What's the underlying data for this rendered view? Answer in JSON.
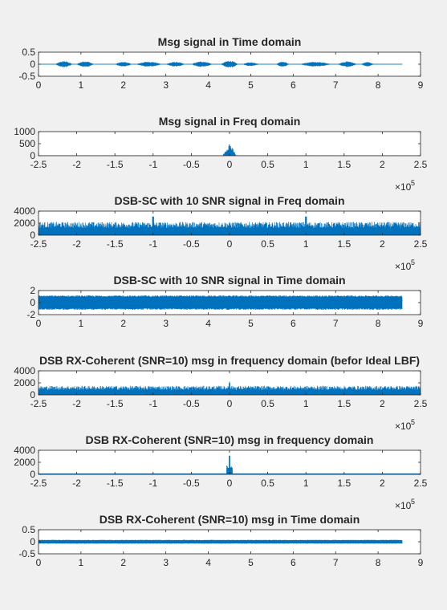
{
  "figure": {
    "background": "#f0f0f0",
    "axes_background": "#ffffff",
    "line_color": "#0072bd",
    "axis_color": "#262626"
  },
  "chart_data": [
    {
      "type": "line",
      "title": "Msg signal in Time domain",
      "xlim": [
        0,
        9
      ],
      "ylim": [
        -0.5,
        0.5
      ],
      "xticks": [
        "0",
        "1",
        "2",
        "3",
        "4",
        "5",
        "6",
        "7",
        "8",
        "9"
      ],
      "yticks": [
        "0.5",
        "0",
        "-0.5"
      ],
      "x_exponent": null,
      "series": [
        {
          "kind": "speech",
          "x_range": [
            0,
            8.57
          ],
          "noise_amplitude": 0.01,
          "bursts": [
            [
              0.4,
              0.8,
              0.13
            ],
            [
              0.9,
              1.3,
              0.13
            ],
            [
              1.8,
              2.2,
              0.1
            ],
            [
              2.3,
              2.9,
              0.11
            ],
            [
              3.0,
              3.45,
              0.1
            ],
            [
              3.6,
              4.1,
              0.12
            ],
            [
              4.3,
              4.7,
              0.15
            ],
            [
              4.8,
              5.2,
              0.08
            ],
            [
              5.6,
              5.9,
              0.12
            ],
            [
              6.15,
              6.9,
              0.1
            ],
            [
              7.05,
              7.5,
              0.12
            ],
            [
              7.6,
              7.9,
              0.09
            ]
          ]
        }
      ]
    },
    {
      "type": "line",
      "title": "Msg signal in Freq domain",
      "xlim": [
        -2.5,
        2.5
      ],
      "ylim": [
        0,
        1000
      ],
      "xticks": [
        "-2.5",
        "-2",
        "-1.5",
        "-1",
        "-0.5",
        "0",
        "0.5",
        "1",
        "1.5",
        "2",
        "2.5"
      ],
      "yticks": [
        "1000",
        "500",
        "0"
      ],
      "x_exponent": "5",
      "series": [
        {
          "kind": "spectrum",
          "floor": 5,
          "noise": 10,
          "center_peak": 560,
          "center_width": 0.09,
          "side_peaks": []
        }
      ]
    },
    {
      "type": "line",
      "title": "DSB-SC with 10 SNR signal in Freq domain",
      "xlim": [
        -2.5,
        2.5
      ],
      "ylim": [
        0,
        4000
      ],
      "xticks": [
        "-2.5",
        "-2",
        "-1.5",
        "-1",
        "-0.5",
        "0",
        "0.5",
        "1",
        "1.5",
        "2",
        "2.5"
      ],
      "yticks": [
        "4000",
        "2000",
        "0"
      ],
      "x_exponent": "5",
      "series": [
        {
          "kind": "spectrum",
          "floor": 0,
          "noise": 2200,
          "center_peak": 0,
          "center_width": 0,
          "side_peaks": [
            [
              -1,
              3100
            ],
            [
              1,
              3100
            ]
          ]
        }
      ]
    },
    {
      "type": "line",
      "title": "DSB-SC with 10 SNR signal in Time domain",
      "xlim": [
        0,
        9
      ],
      "ylim": [
        -2,
        2
      ],
      "xticks": [
        "0",
        "1",
        "2",
        "3",
        "4",
        "5",
        "6",
        "7",
        "8",
        "9"
      ],
      "yticks": [
        "2",
        "0",
        "-2"
      ],
      "x_exponent": null,
      "series": [
        {
          "kind": "noise_band",
          "x_range": [
            0,
            8.57
          ],
          "amplitude": 1.2
        }
      ]
    },
    {
      "type": "line",
      "title": "DSB RX-Coherent (SNR=10) msg in frequency domain (befor Ideal LBF)",
      "xlim": [
        -2.5,
        2.5
      ],
      "ylim": [
        0,
        4000
      ],
      "xticks": [
        "-2.5",
        "-2",
        "-1.5",
        "-1",
        "-0.5",
        "0",
        "0.5",
        "1",
        "1.5",
        "2",
        "2.5"
      ],
      "yticks": [
        "4000",
        "2000",
        "0"
      ],
      "x_exponent": "5",
      "series": [
        {
          "kind": "spectrum",
          "floor": 0,
          "noise": 1500,
          "center_peak": 3100,
          "center_width": 0.03,
          "side_peaks": []
        }
      ]
    },
    {
      "type": "line",
      "title": "DSB RX-Coherent (SNR=10) msg in frequency domain",
      "xlim": [
        -2.5,
        2.5
      ],
      "ylim": [
        0,
        4000
      ],
      "xticks": [
        "-2.5",
        "-2",
        "-1.5",
        "-1",
        "-0.5",
        "0",
        "0.5",
        "1",
        "1.5",
        "2",
        "2.5"
      ],
      "yticks": [
        "4000",
        "2000",
        "0"
      ],
      "x_exponent": "5",
      "series": [
        {
          "kind": "lpf_spectrum",
          "cutoff": 0.04,
          "level": 1500,
          "center_peak": 3100
        }
      ]
    },
    {
      "type": "line",
      "title": "DSB RX-Coherent (SNR=10) msg in Time domain",
      "xlim": [
        0,
        9
      ],
      "ylim": [
        -0.5,
        0.5
      ],
      "xticks": [
        "0",
        "1",
        "2",
        "3",
        "4",
        "5",
        "6",
        "7",
        "8",
        "9"
      ],
      "yticks": [
        "0.5",
        "0",
        "-0.5"
      ],
      "x_exponent": null,
      "series": [
        {
          "kind": "noise_band",
          "x_range": [
            0,
            8.57
          ],
          "amplitude": 0.08
        }
      ]
    }
  ]
}
